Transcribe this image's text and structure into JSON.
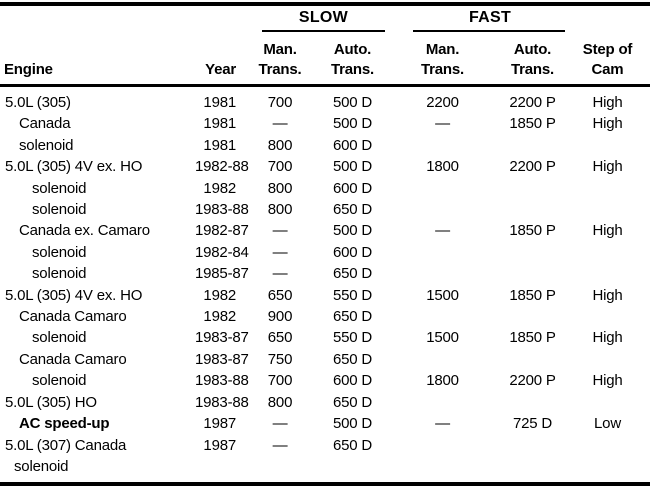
{
  "colors": {
    "ink": "#000000",
    "paper": "#ffffff"
  },
  "table": {
    "header": {
      "engine": "Engine",
      "year": "Year",
      "slow_group": "SLOW",
      "fast_group": "FAST",
      "man": "Man.",
      "auto": "Auto.",
      "trans": "Trans.",
      "cam_line1": "Step of",
      "cam_line2": "Cam"
    },
    "rows": [
      {
        "engine": "5.0L (305)",
        "indent": 0,
        "bold": false,
        "year": "1981",
        "slow_man": "700",
        "slow_auto": "500 D",
        "fast_man": "2200",
        "fast_auto": "2200 P",
        "cam": "High"
      },
      {
        "engine": "Canada",
        "indent": 1,
        "bold": false,
        "year": "1981",
        "slow_man": "—",
        "slow_auto": "500 D",
        "fast_man": "—",
        "fast_auto": "1850 P",
        "cam": "High"
      },
      {
        "engine": "solenoid",
        "indent": 1,
        "bold": false,
        "year": "1981",
        "slow_man": "800",
        "slow_auto": "600 D",
        "fast_man": "",
        "fast_auto": "",
        "cam": ""
      },
      {
        "engine": "5.0L (305) 4V ex. HO",
        "indent": 0,
        "bold": false,
        "year": "1982-88",
        "slow_man": "700",
        "slow_auto": "500 D",
        "fast_man": "1800",
        "fast_auto": "2200 P",
        "cam": "High"
      },
      {
        "engine": "solenoid",
        "indent": 2,
        "bold": false,
        "year": "1982",
        "slow_man": "800",
        "slow_auto": "600 D",
        "fast_man": "",
        "fast_auto": "",
        "cam": ""
      },
      {
        "engine": "solenoid",
        "indent": 2,
        "bold": false,
        "year": "1983-88",
        "slow_man": "800",
        "slow_auto": "650 D",
        "fast_man": "",
        "fast_auto": "",
        "cam": ""
      },
      {
        "engine": "Canada ex. Camaro",
        "indent": 1,
        "bold": false,
        "year": "1982-87",
        "slow_man": "—",
        "slow_auto": "500 D",
        "fast_man": "—",
        "fast_auto": "1850 P",
        "cam": "High"
      },
      {
        "engine": "solenoid",
        "indent": 2,
        "bold": false,
        "year": "1982-84",
        "slow_man": "—",
        "slow_auto": "600 D",
        "fast_man": "",
        "fast_auto": "",
        "cam": ""
      },
      {
        "engine": "solenoid",
        "indent": 2,
        "bold": false,
        "year": "1985-87",
        "slow_man": "—",
        "slow_auto": "650 D",
        "fast_man": "",
        "fast_auto": "",
        "cam": ""
      },
      {
        "engine": "5.0L (305) 4V ex. HO",
        "indent": 0,
        "bold": false,
        "year": "1982",
        "slow_man": "650",
        "slow_auto": "550 D",
        "fast_man": "1500",
        "fast_auto": "1850 P",
        "cam": "High"
      },
      {
        "engine": "Canada Camaro",
        "indent": 1,
        "bold": false,
        "year": "1982",
        "slow_man": "900",
        "slow_auto": "650 D",
        "fast_man": "",
        "fast_auto": "",
        "cam": ""
      },
      {
        "engine": "solenoid",
        "indent": 2,
        "bold": false,
        "year": "1983-87",
        "slow_man": "650",
        "slow_auto": "550 D",
        "fast_man": "1500",
        "fast_auto": "1850 P",
        "cam": "High"
      },
      {
        "engine": "Canada Camaro",
        "indent": 1,
        "bold": false,
        "year": "1983-87",
        "slow_man": "750",
        "slow_auto": "650 D",
        "fast_man": "",
        "fast_auto": "",
        "cam": ""
      },
      {
        "engine": "solenoid",
        "indent": 2,
        "bold": false,
        "year": "1983-88",
        "slow_man": "700",
        "slow_auto": "600 D",
        "fast_man": "1800",
        "fast_auto": "2200 P",
        "cam": "High"
      },
      {
        "engine": "5.0L (305) HO",
        "indent": 0,
        "bold": false,
        "year": "1983-88",
        "slow_man": "800",
        "slow_auto": "650 D",
        "fast_man": "",
        "fast_auto": "",
        "cam": ""
      },
      {
        "engine": "AC speed-up",
        "indent": 1,
        "bold": true,
        "year": "1987",
        "slow_man": "—",
        "slow_auto": "500 D",
        "fast_man": "—",
        "fast_auto": "725 D",
        "cam": "Low"
      },
      {
        "engine": "5.0L (307) Canada",
        "indent": 0,
        "bold": false,
        "year": "1987",
        "slow_man": "—",
        "slow_auto": "650 D",
        "fast_man": "",
        "fast_auto": "",
        "cam": ""
      },
      {
        "engine": "solenoid",
        "indent": 3,
        "bold": false,
        "year": "",
        "slow_man": "",
        "slow_auto": "",
        "fast_man": "",
        "fast_auto": "",
        "cam": ""
      }
    ]
  }
}
